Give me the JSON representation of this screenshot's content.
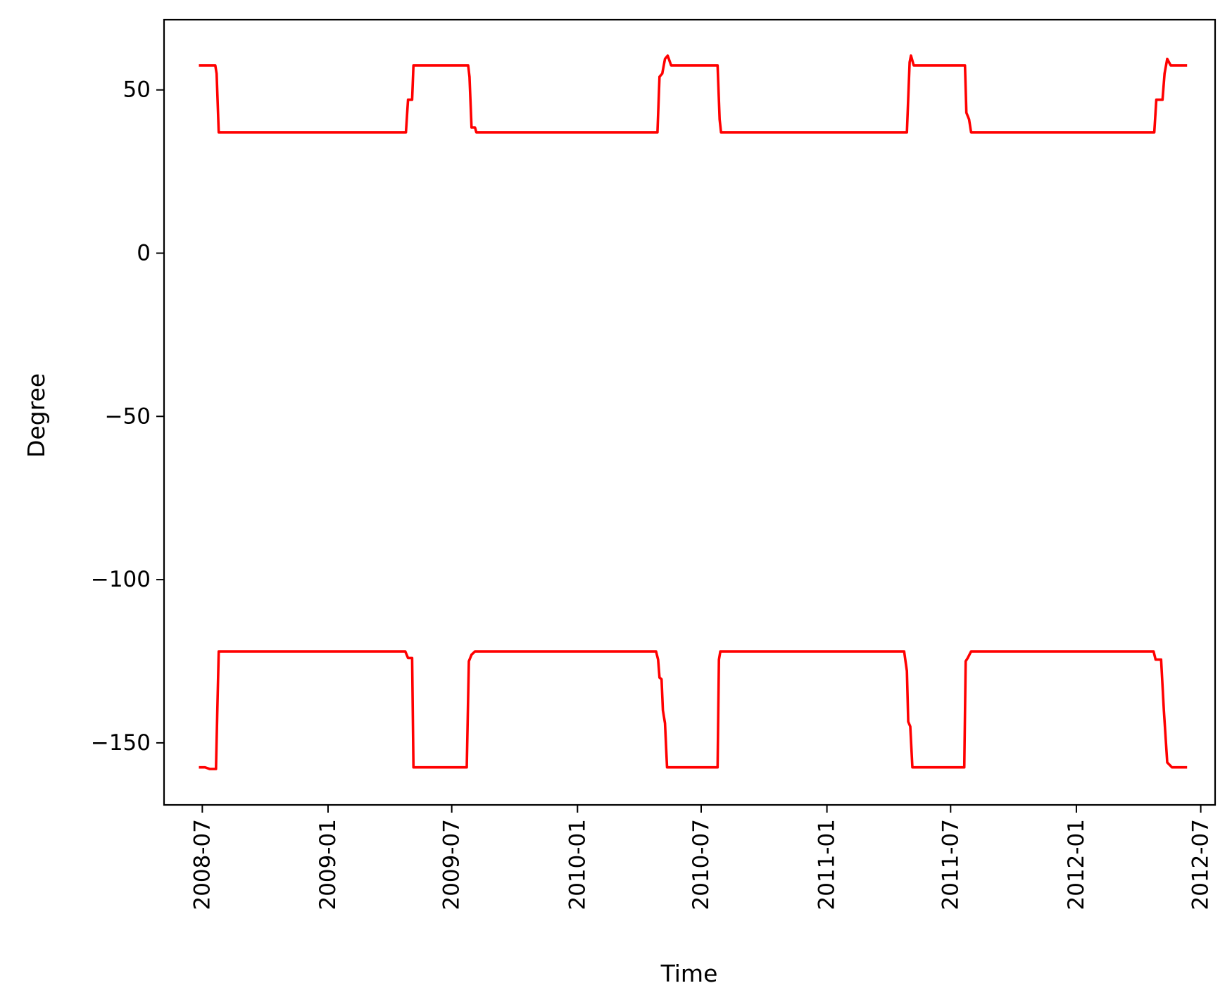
{
  "chart_data": {
    "type": "line",
    "title": "",
    "xlabel": "Time",
    "ylabel": "Degree",
    "x_range": [
      "2008-05-06",
      "2012-07-22"
    ],
    "ylim": [
      -169,
      71.5
    ],
    "x_ticks": [
      "2008-07",
      "2009-01",
      "2009-07",
      "2010-01",
      "2010-07",
      "2011-01",
      "2011-07",
      "2012-01",
      "2012-07"
    ],
    "y_ticks": [
      50,
      0,
      -50,
      -100,
      -150
    ],
    "y_tick_labels": [
      "50",
      "0",
      "−50",
      "−100",
      "−150"
    ],
    "grid": false,
    "legend": "none",
    "line_color": "#ff0000",
    "series": [
      {
        "points": [
          [
            "2008-06-26",
            57.5
          ],
          [
            "2008-07-20",
            57.5
          ],
          [
            "2008-07-22",
            55
          ],
          [
            "2008-07-25",
            37
          ],
          [
            "2009-04-25",
            37
          ],
          [
            "2009-04-28",
            47
          ],
          [
            "2009-05-04",
            47
          ],
          [
            "2009-05-06",
            57.5
          ],
          [
            "2009-07-25",
            57.5
          ],
          [
            "2009-07-27",
            54
          ],
          [
            "2009-07-30",
            38.5
          ],
          [
            "2009-08-04",
            38.5
          ],
          [
            "2009-08-06",
            37
          ],
          [
            "2010-04-28",
            37
          ],
          [
            "2010-05-01",
            54
          ],
          [
            "2010-05-05",
            55
          ],
          [
            "2010-05-09",
            59.5
          ],
          [
            "2010-05-13",
            60.5
          ],
          [
            "2010-05-18",
            57.5
          ],
          [
            "2010-07-25",
            57.5
          ],
          [
            "2010-07-28",
            41
          ],
          [
            "2010-07-30",
            37
          ],
          [
            "2011-04-28",
            37
          ],
          [
            "2011-05-02",
            58.5
          ],
          [
            "2011-05-04",
            60.5
          ],
          [
            "2011-05-08",
            57.5
          ],
          [
            "2011-07-22",
            57.5
          ],
          [
            "2011-07-24",
            43
          ],
          [
            "2011-07-28",
            41
          ],
          [
            "2011-07-31",
            37
          ],
          [
            "2012-04-24",
            37
          ],
          [
            "2012-04-27",
            47
          ],
          [
            "2012-05-06",
            47
          ],
          [
            "2012-05-09",
            55
          ],
          [
            "2012-05-13",
            59.5
          ],
          [
            "2012-05-18",
            57.5
          ],
          [
            "2012-06-11",
            57.5
          ]
        ]
      },
      {
        "points": [
          [
            "2008-06-26",
            -157.5
          ],
          [
            "2008-07-05",
            -157.5
          ],
          [
            "2008-07-12",
            -158
          ],
          [
            "2008-07-21",
            -158
          ],
          [
            "2008-07-23",
            -140
          ],
          [
            "2008-07-25",
            -122
          ],
          [
            "2009-04-24",
            -122
          ],
          [
            "2009-04-28",
            -124
          ],
          [
            "2009-05-04",
            -124
          ],
          [
            "2009-05-06",
            -157.5
          ],
          [
            "2009-07-23",
            -157.5
          ],
          [
            "2009-07-26",
            -125
          ],
          [
            "2009-07-30",
            -123
          ],
          [
            "2009-08-04",
            -122
          ],
          [
            "2010-04-26",
            -122
          ],
          [
            "2010-04-29",
            -124.5
          ],
          [
            "2010-05-01",
            -130
          ],
          [
            "2010-05-04",
            -130.5
          ],
          [
            "2010-05-06",
            -140
          ],
          [
            "2010-05-09",
            -144
          ],
          [
            "2010-05-12",
            -157.5
          ],
          [
            "2010-07-25",
            -157.5
          ],
          [
            "2010-07-27",
            -124.5
          ],
          [
            "2010-07-29",
            -122
          ],
          [
            "2011-04-24",
            -122
          ],
          [
            "2011-04-28",
            -128
          ],
          [
            "2011-04-30",
            -143.5
          ],
          [
            "2011-05-03",
            -145
          ],
          [
            "2011-05-06",
            -157.5
          ],
          [
            "2011-07-21",
            -157.5
          ],
          [
            "2011-07-23",
            -125
          ],
          [
            "2011-07-26",
            -124
          ],
          [
            "2011-07-31",
            -122
          ],
          [
            "2012-04-23",
            -122
          ],
          [
            "2012-04-26",
            -124.5
          ],
          [
            "2012-05-04",
            -124.5
          ],
          [
            "2012-05-08",
            -140
          ],
          [
            "2012-05-13",
            -156
          ],
          [
            "2012-05-20",
            -157.5
          ],
          [
            "2012-06-11",
            -157.5
          ]
        ]
      }
    ]
  }
}
